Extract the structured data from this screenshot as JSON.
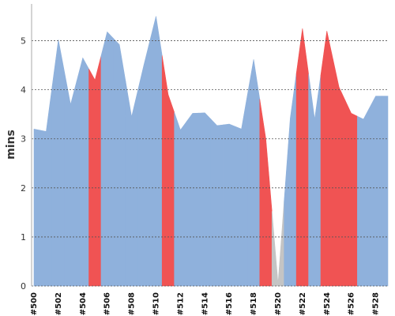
{
  "chart_data": {
    "type": "area",
    "title": "",
    "ylabel": "mins",
    "xlabel": "",
    "ylim": [
      0,
      5.75
    ],
    "yticks": [
      0,
      1,
      2,
      3,
      4,
      5
    ],
    "grid": true,
    "categories": [
      "#500",
      "#501",
      "#502",
      "#503",
      "#504",
      "#505",
      "#506",
      "#507",
      "#508",
      "#509",
      "#510",
      "#511",
      "#512",
      "#513",
      "#514",
      "#515",
      "#516",
      "#517",
      "#518",
      "#519",
      "#520",
      "#521",
      "#522",
      "#523",
      "#524",
      "#525",
      "#526",
      "#527",
      "#528",
      "#529"
    ],
    "x_tick_labels": [
      "#500",
      "#502",
      "#504",
      "#506",
      "#508",
      "#510",
      "#512",
      "#514",
      "#516",
      "#518",
      "#520",
      "#522",
      "#524",
      "#526",
      "#528"
    ],
    "values": [
      3.2,
      3.15,
      5.02,
      3.7,
      4.65,
      4.2,
      5.18,
      4.92,
      3.45,
      4.5,
      5.5,
      3.9,
      3.18,
      3.52,
      3.53,
      3.27,
      3.3,
      3.2,
      4.62,
      3.0,
      0.05,
      3.42,
      5.25,
      3.4,
      5.2,
      4.05,
      3.52,
      3.4,
      3.87,
      3.87
    ],
    "status": [
      "success",
      "success",
      "success",
      "success",
      "success",
      "failure",
      "success",
      "success",
      "success",
      "success",
      "success",
      "failure",
      "success",
      "success",
      "success",
      "success",
      "success",
      "success",
      "success",
      "failure",
      "aborted",
      "success",
      "failure",
      "success",
      "failure",
      "failure",
      "failure",
      "success",
      "success",
      "success"
    ],
    "colors": {
      "success": "#8fb1dc",
      "failure": "#f05353",
      "aborted": "#c4c4c4"
    }
  }
}
